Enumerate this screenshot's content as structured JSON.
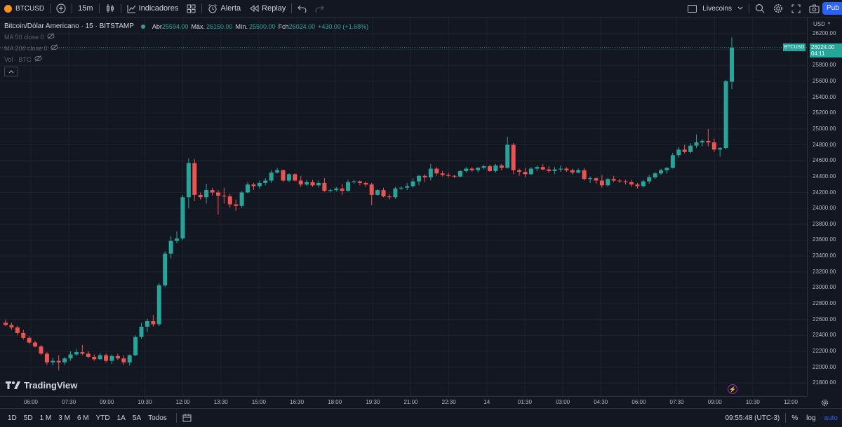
{
  "toolbar": {
    "symbol": "BTCUSD",
    "interval": "15m",
    "indicators_label": "Indicadores",
    "alert_label": "Alerta",
    "replay_label": "Replay",
    "layout_name": "Livecoins",
    "publish_label": "Pub"
  },
  "legend": {
    "title": "Bitcoin/Dólar Americano · 15 · BITSTAMP",
    "open_label": "Abr",
    "open": "25594.00",
    "high_label": "Máx.",
    "high": "26150.00",
    "low_label": "Mín.",
    "low": "25500.00",
    "close_label": "Fch",
    "close": "26024.00",
    "change": "+430.00 (+1.68%)",
    "indicators": [
      "MA 50 close 0",
      "MA 200 close 0",
      "Vol · BTC"
    ]
  },
  "price_axis": {
    "currency": "USD",
    "ticks": [
      "26200.00",
      "26000.00",
      "25800.00",
      "25600.00",
      "25400.00",
      "25200.00",
      "25000.00",
      "24800.00",
      "24600.00",
      "24400.00",
      "24200.00",
      "24000.00",
      "23800.00",
      "23600.00",
      "23400.00",
      "23200.00",
      "23000.00",
      "22800.00",
      "22600.00",
      "22400.00",
      "22200.00",
      "22000.00",
      "21800.00"
    ],
    "symbol_tag": "BTCUSD",
    "last_price": "26024.00",
    "countdown": "04:11"
  },
  "time_axis": {
    "ticks": [
      "06:00",
      "07:30",
      "09:00",
      "10:30",
      "12:00",
      "13:30",
      "15:00",
      "16:30",
      "18:00",
      "19:30",
      "21:00",
      "22:30",
      "14",
      "01:30",
      "03:00",
      "04:30",
      "06:00",
      "07:30",
      "09:00",
      "10:30",
      "12:00"
    ]
  },
  "bottom": {
    "ranges": [
      "1D",
      "5D",
      "1 M",
      "3 M",
      "6 M",
      "YTD",
      "1A",
      "5A",
      "Todos"
    ],
    "clock": "09:55:48 (UTC-3)",
    "percent": "%",
    "log": "log",
    "auto": "auto"
  },
  "branding": {
    "logo_text": "TradingView"
  },
  "colors": {
    "up": "#26a69a",
    "down": "#ef5350",
    "background": "#131722",
    "grid": "#1e222d",
    "accent": "#2962ff"
  },
  "chart_data": {
    "type": "candlestick",
    "ylim": [
      21700,
      26300
    ],
    "y_unit": "USD",
    "candles": [
      [
        22560,
        22600,
        22520,
        22530
      ],
      [
        22530,
        22560,
        22470,
        22500
      ],
      [
        22500,
        22520,
        22400,
        22430
      ],
      [
        22430,
        22470,
        22350,
        22370
      ],
      [
        22370,
        22390,
        22290,
        22310
      ],
      [
        22310,
        22330,
        22250,
        22260
      ],
      [
        22260,
        22280,
        22150,
        22170
      ],
      [
        22170,
        22190,
        22030,
        22060
      ],
      [
        22060,
        22120,
        22020,
        22080
      ],
      [
        22080,
        22150,
        21960,
        22060
      ],
      [
        22060,
        22130,
        22030,
        22110
      ],
      [
        22110,
        22200,
        22080,
        22160
      ],
      [
        22160,
        22230,
        22140,
        22190
      ],
      [
        22190,
        22280,
        22150,
        22170
      ],
      [
        22170,
        22200,
        22110,
        22130
      ],
      [
        22130,
        22160,
        22080,
        22100
      ],
      [
        22100,
        22180,
        22090,
        22150
      ],
      [
        22150,
        22170,
        22060,
        22080
      ],
      [
        22080,
        22160,
        22040,
        22140
      ],
      [
        22140,
        22170,
        22090,
        22110
      ],
      [
        22110,
        22150,
        22030,
        22060
      ],
      [
        22060,
        22160,
        22020,
        22150
      ],
      [
        22150,
        22400,
        22140,
        22380
      ],
      [
        22380,
        22560,
        22360,
        22510
      ],
      [
        22510,
        22610,
        22440,
        22580
      ],
      [
        22580,
        22660,
        22510,
        22540
      ],
      [
        22540,
        23060,
        22520,
        23030
      ],
      [
        23030,
        23460,
        23010,
        23430
      ],
      [
        23430,
        23650,
        23370,
        23590
      ],
      [
        23590,
        23710,
        23560,
        23620
      ],
      [
        23620,
        24170,
        23600,
        24140
      ],
      [
        24140,
        24630,
        24000,
        24570
      ],
      [
        24570,
        24620,
        24090,
        24170
      ],
      [
        24170,
        24200,
        24110,
        24140
      ],
      [
        24140,
        24310,
        24060,
        24230
      ],
      [
        24230,
        24260,
        24160,
        24200
      ],
      [
        24200,
        24230,
        23920,
        24160
      ],
      [
        24160,
        24260,
        24060,
        24150
      ],
      [
        24150,
        24180,
        24010,
        24050
      ],
      [
        24050,
        24110,
        23970,
        24030
      ],
      [
        24030,
        24220,
        24010,
        24200
      ],
      [
        24200,
        24330,
        24190,
        24300
      ],
      [
        24300,
        24320,
        24230,
        24280
      ],
      [
        24280,
        24350,
        24250,
        24320
      ],
      [
        24320,
        24380,
        24290,
        24350
      ],
      [
        24350,
        24480,
        24320,
        24450
      ],
      [
        24450,
        24510,
        24440,
        24480
      ],
      [
        24480,
        24490,
        24330,
        24350
      ],
      [
        24350,
        24440,
        24330,
        24430
      ],
      [
        24430,
        24440,
        24340,
        24350
      ],
      [
        24350,
        24410,
        24270,
        24300
      ],
      [
        24300,
        24360,
        24280,
        24330
      ],
      [
        24330,
        24360,
        24270,
        24290
      ],
      [
        24290,
        24350,
        24260,
        24320
      ],
      [
        24320,
        24380,
        24210,
        24220
      ],
      [
        24220,
        24250,
        24200,
        24230
      ],
      [
        24230,
        24270,
        24210,
        24250
      ],
      [
        24250,
        24310,
        24170,
        24220
      ],
      [
        24220,
        24360,
        24210,
        24330
      ],
      [
        24330,
        24360,
        24310,
        24340
      ],
      [
        24340,
        24350,
        24290,
        24320
      ],
      [
        24320,
        24340,
        24270,
        24300
      ],
      [
        24300,
        24320,
        24040,
        24170
      ],
      [
        24170,
        24240,
        24160,
        24230
      ],
      [
        24230,
        24260,
        24140,
        24150
      ],
      [
        24150,
        24180,
        24110,
        24140
      ],
      [
        24140,
        24270,
        24120,
        24250
      ],
      [
        24250,
        24280,
        24230,
        24260
      ],
      [
        24260,
        24320,
        24230,
        24280
      ],
      [
        24280,
        24380,
        24260,
        24340
      ],
      [
        24340,
        24420,
        24290,
        24410
      ],
      [
        24410,
        24430,
        24330,
        24390
      ],
      [
        24390,
        24560,
        24350,
        24500
      ],
      [
        24500,
        24520,
        24410,
        24440
      ],
      [
        24440,
        24470,
        24400,
        24420
      ],
      [
        24420,
        24450,
        24390,
        24410
      ],
      [
        24410,
        24420,
        24380,
        24400
      ],
      [
        24400,
        24480,
        24390,
        24470
      ],
      [
        24470,
        24520,
        24450,
        24500
      ],
      [
        24500,
        24520,
        24460,
        24480
      ],
      [
        24480,
        24520,
        24450,
        24510
      ],
      [
        24510,
        24550,
        24490,
        24530
      ],
      [
        24530,
        24550,
        24460,
        24470
      ],
      [
        24470,
        24560,
        24450,
        24540
      ],
      [
        24540,
        24560,
        24480,
        24510
      ],
      [
        24510,
        24900,
        24500,
        24800
      ],
      [
        24800,
        24820,
        24430,
        24480
      ],
      [
        24480,
        24500,
        24410,
        24460
      ],
      [
        24460,
        24510,
        24390,
        24430
      ],
      [
        24430,
        24520,
        24420,
        24500
      ],
      [
        24500,
        24540,
        24470,
        24520
      ],
      [
        24520,
        24560,
        24480,
        24490
      ],
      [
        24490,
        24530,
        24450,
        24470
      ],
      [
        24470,
        24520,
        24430,
        24490
      ],
      [
        24490,
        24540,
        24460,
        24500
      ],
      [
        24500,
        24520,
        24460,
        24480
      ],
      [
        24480,
        24500,
        24430,
        24450
      ],
      [
        24450,
        24500,
        24440,
        24480
      ],
      [
        24480,
        24510,
        24350,
        24370
      ],
      [
        24370,
        24400,
        24320,
        24380
      ],
      [
        24380,
        24390,
        24310,
        24350
      ],
      [
        24350,
        24420,
        24260,
        24290
      ],
      [
        24290,
        24380,
        24270,
        24370
      ],
      [
        24370,
        24410,
        24330,
        24350
      ],
      [
        24350,
        24370,
        24320,
        24340
      ],
      [
        24340,
        24360,
        24300,
        24330
      ],
      [
        24330,
        24360,
        24270,
        24300
      ],
      [
        24300,
        24320,
        24250,
        24280
      ],
      [
        24280,
        24360,
        24260,
        24340
      ],
      [
        24340,
        24420,
        24310,
        24390
      ],
      [
        24390,
        24460,
        24370,
        24440
      ],
      [
        24440,
        24500,
        24420,
        24480
      ],
      [
        24480,
        24520,
        24440,
        24510
      ],
      [
        24510,
        24700,
        24500,
        24670
      ],
      [
        24670,
        24770,
        24640,
        24740
      ],
      [
        24740,
        24800,
        24690,
        24710
      ],
      [
        24710,
        24820,
        24690,
        24790
      ],
      [
        24790,
        24930,
        24760,
        24830
      ],
      [
        24830,
        24870,
        24780,
        24850
      ],
      [
        24850,
        25000,
        24780,
        24830
      ],
      [
        24830,
        24880,
        24710,
        24740
      ],
      [
        24740,
        24770,
        24650,
        24760
      ],
      [
        24760,
        25620,
        24740,
        25600
      ],
      [
        25594,
        26150,
        25500,
        26024
      ]
    ]
  }
}
